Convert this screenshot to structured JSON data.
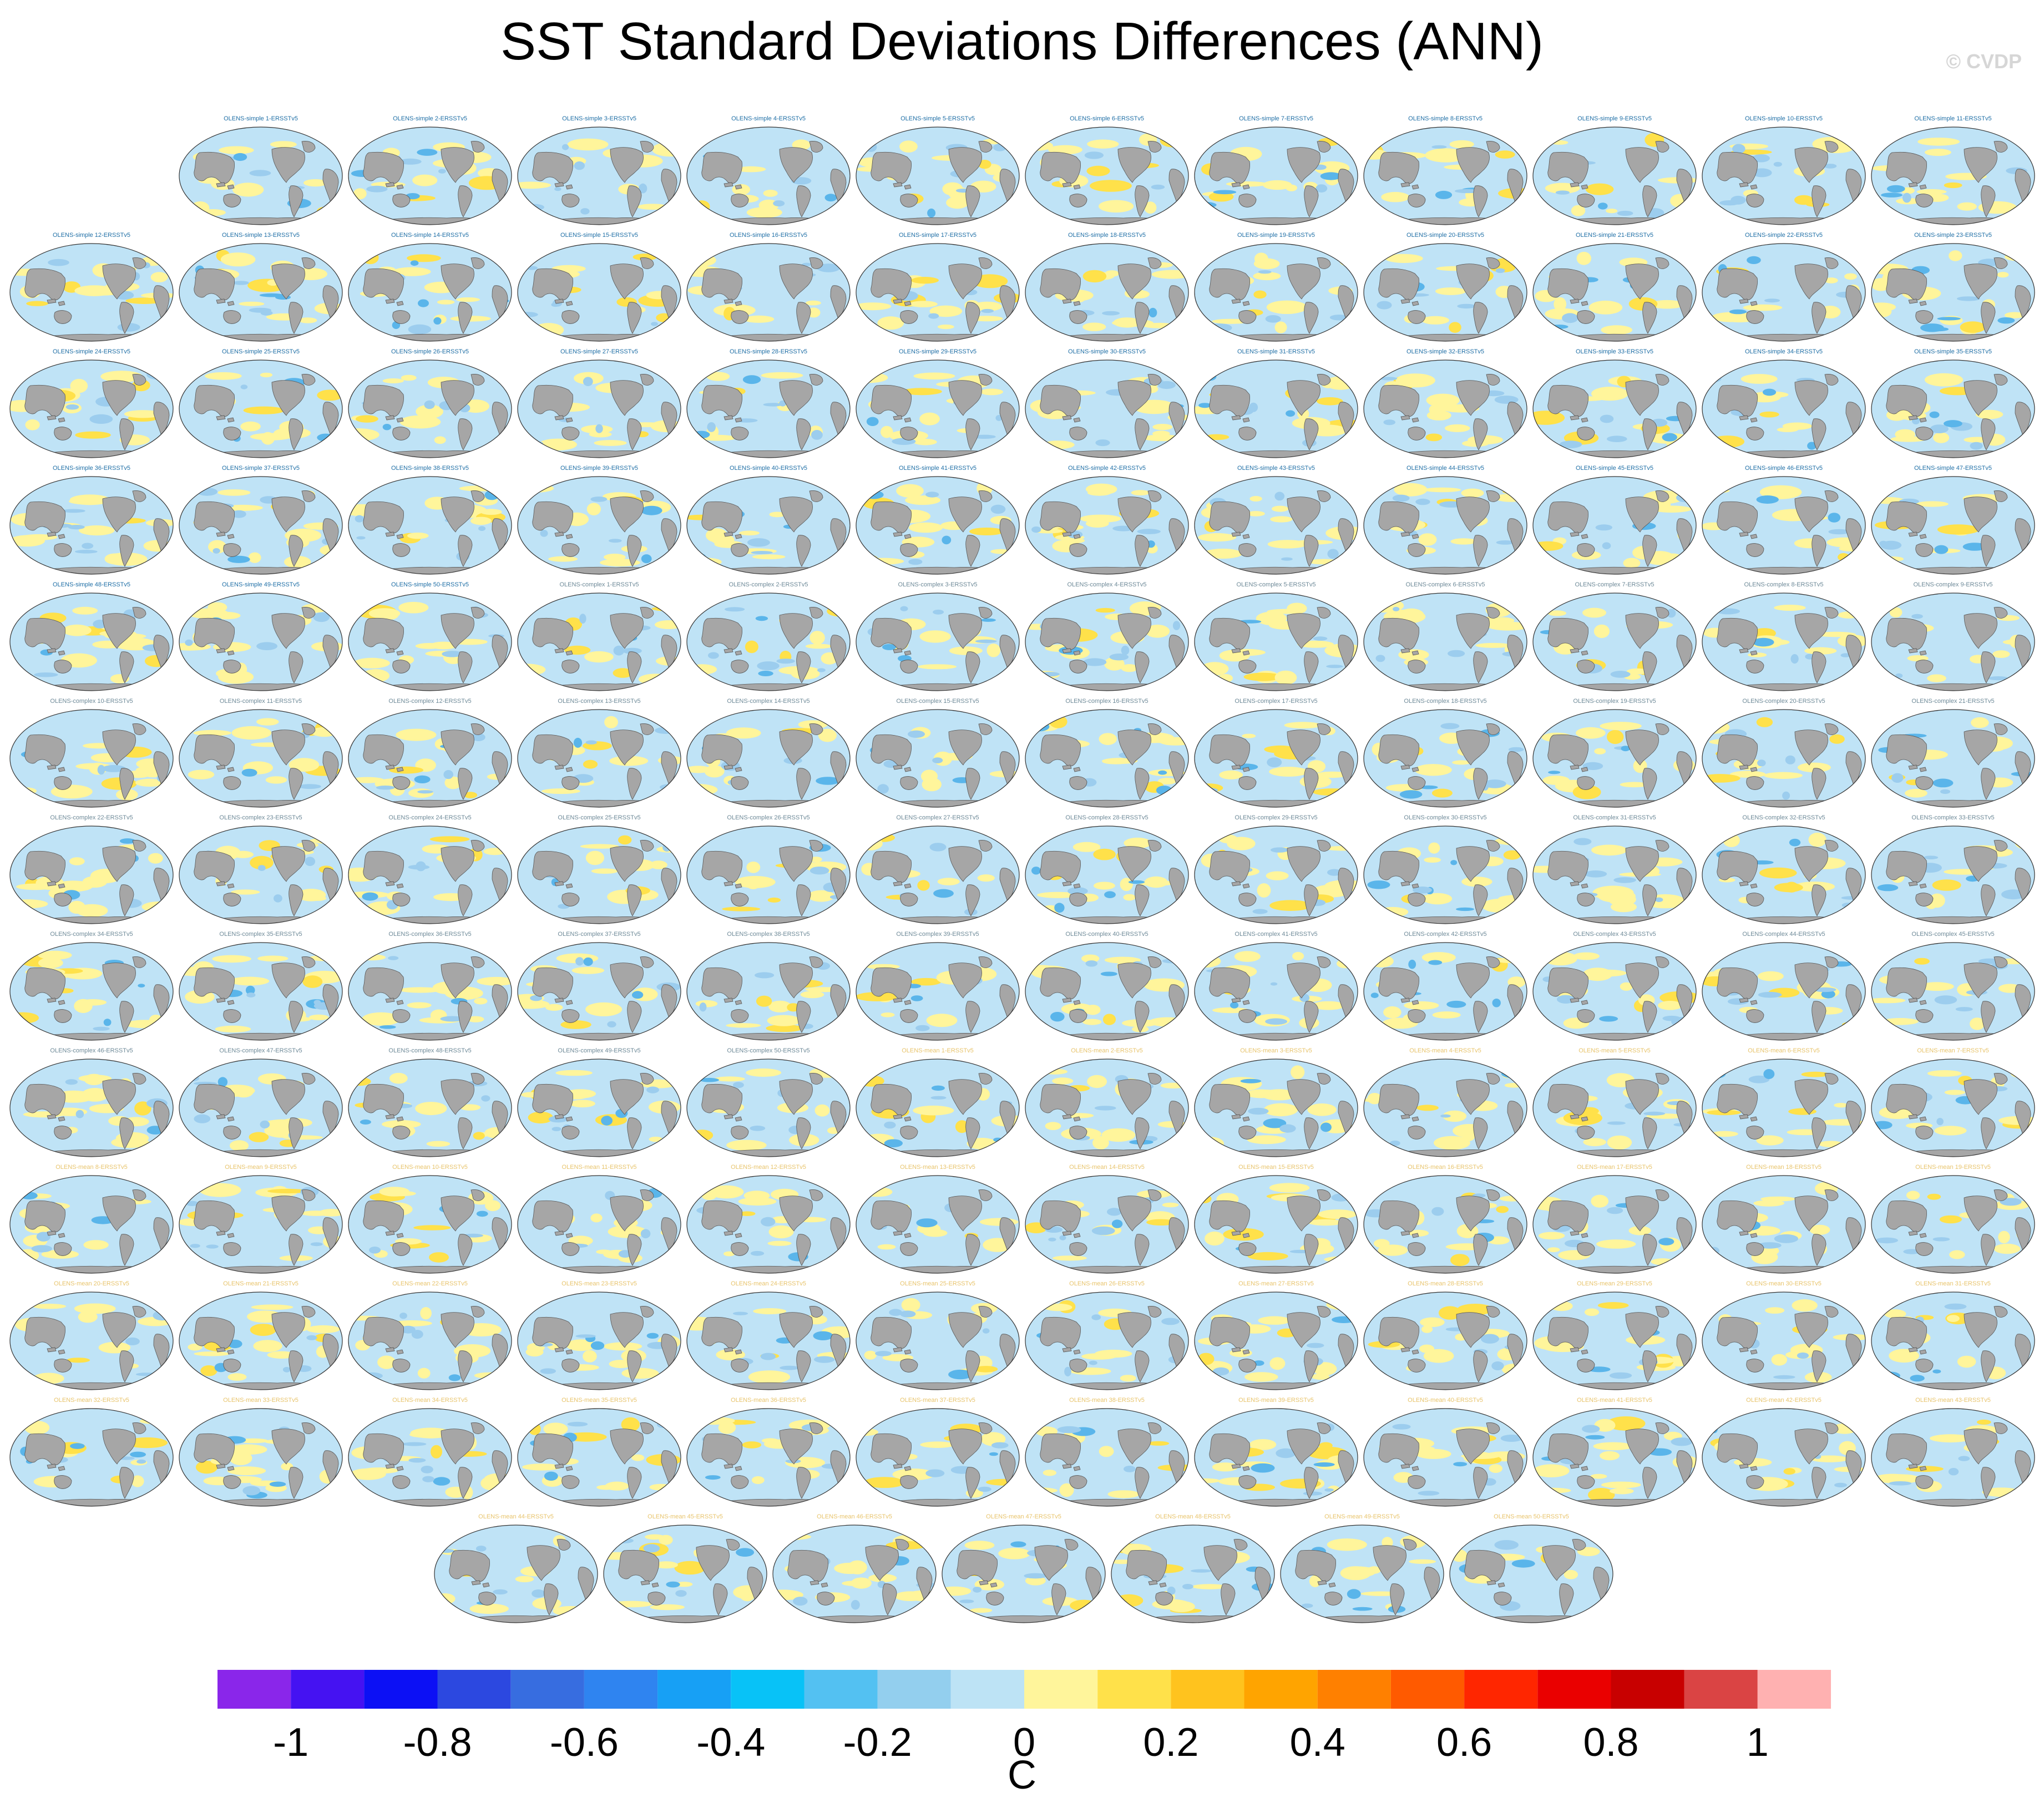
{
  "page": {
    "title": "SST Standard Deviations Differences (ANN)",
    "watermark": "© CVDP"
  },
  "colors": {
    "map_background": "#bfe3f6",
    "land": "#a6a6a6",
    "coast": "#555555",
    "positive_light": "#fff59b",
    "positive_mid": "#ffe14a",
    "negative_light": "#9ccdee",
    "negative_mid": "#5ab5ea",
    "title_simple": "#1f6fa6",
    "title_complex": "#6e8a98",
    "title_mean": "#e8c46c"
  },
  "chart_data": {
    "type": "heatmap",
    "title": "SST Standard Deviations Differences (ANN)",
    "variable": "SST standard deviation difference",
    "season": "ANN",
    "panels": {
      "simple": [
        "OLENS-simple 1-ERSSTv5",
        "OLENS-simple 2-ERSSTv5",
        "OLENS-simple 3-ERSSTv5",
        "OLENS-simple 4-ERSSTv5",
        "OLENS-simple 5-ERSSTv5",
        "OLENS-simple 6-ERSSTv5",
        "OLENS-simple 7-ERSSTv5",
        "OLENS-simple 8-ERSSTv5",
        "OLENS-simple 9-ERSSTv5",
        "OLENS-simple 10-ERSSTv5",
        "OLENS-simple 11-ERSSTv5",
        "OLENS-simple 12-ERSSTv5",
        "OLENS-simple 13-ERSSTv5",
        "OLENS-simple 14-ERSSTv5",
        "OLENS-simple 15-ERSSTv5",
        "OLENS-simple 16-ERSSTv5",
        "OLENS-simple 17-ERSSTv5",
        "OLENS-simple 18-ERSSTv5",
        "OLENS-simple 19-ERSSTv5",
        "OLENS-simple 20-ERSSTv5",
        "OLENS-simple 21-ERSSTv5",
        "OLENS-simple 22-ERSSTv5",
        "OLENS-simple 23-ERSSTv5",
        "OLENS-simple 24-ERSSTv5",
        "OLENS-simple 25-ERSSTv5",
        "OLENS-simple 26-ERSSTv5",
        "OLENS-simple 27-ERSSTv5",
        "OLENS-simple 28-ERSSTv5",
        "OLENS-simple 29-ERSSTv5",
        "OLENS-simple 30-ERSSTv5",
        "OLENS-simple 31-ERSSTv5",
        "OLENS-simple 32-ERSSTv5",
        "OLENS-simple 33-ERSSTv5",
        "OLENS-simple 34-ERSSTv5",
        "OLENS-simple 35-ERSSTv5",
        "OLENS-simple 36-ERSSTv5",
        "OLENS-simple 37-ERSSTv5",
        "OLENS-simple 38-ERSSTv5",
        "OLENS-simple 39-ERSSTv5",
        "OLENS-simple 40-ERSSTv5",
        "OLENS-simple 41-ERSSTv5",
        "OLENS-simple 42-ERSSTv5",
        "OLENS-simple 43-ERSSTv5",
        "OLENS-simple 44-ERSSTv5",
        "OLENS-simple 45-ERSSTv5",
        "OLENS-simple 46-ERSSTv5",
        "OLENS-simple 47-ERSSTv5",
        "OLENS-simple 48-ERSSTv5",
        "OLENS-simple 49-ERSSTv5",
        "OLENS-simple 50-ERSSTv5"
      ],
      "complex": [
        "OLENS-complex 1-ERSSTv5",
        "OLENS-complex 2-ERSSTv5",
        "OLENS-complex 3-ERSSTv5",
        "OLENS-complex 4-ERSSTv5",
        "OLENS-complex 5-ERSSTv5",
        "OLENS-complex 6-ERSSTv5",
        "OLENS-complex 7-ERSSTv5",
        "OLENS-complex 8-ERSSTv5",
        "OLENS-complex 9-ERSSTv5",
        "OLENS-complex 10-ERSSTv5",
        "OLENS-complex 11-ERSSTv5",
        "OLENS-complex 12-ERSSTv5",
        "OLENS-complex 13-ERSSTv5",
        "OLENS-complex 14-ERSSTv5",
        "OLENS-complex 15-ERSSTv5",
        "OLENS-complex 16-ERSSTv5",
        "OLENS-complex 17-ERSSTv5",
        "OLENS-complex 18-ERSSTv5",
        "OLENS-complex 19-ERSSTv5",
        "OLENS-complex 20-ERSSTv5",
        "OLENS-complex 21-ERSSTv5",
        "OLENS-complex 22-ERSSTv5",
        "OLENS-complex 23-ERSSTv5",
        "OLENS-complex 24-ERSSTv5",
        "OLENS-complex 25-ERSSTv5",
        "OLENS-complex 26-ERSSTv5",
        "OLENS-complex 27-ERSSTv5",
        "OLENS-complex 28-ERSSTv5",
        "OLENS-complex 29-ERSSTv5",
        "OLENS-complex 30-ERSSTv5",
        "OLENS-complex 31-ERSSTv5",
        "OLENS-complex 32-ERSSTv5",
        "OLENS-complex 33-ERSSTv5",
        "OLENS-complex 34-ERSSTv5",
        "OLENS-complex 35-ERSSTv5",
        "OLENS-complex 36-ERSSTv5",
        "OLENS-complex 37-ERSSTv5",
        "OLENS-complex 38-ERSSTv5",
        "OLENS-complex 39-ERSSTv5",
        "OLENS-complex 40-ERSSTv5",
        "OLENS-complex 41-ERSSTv5",
        "OLENS-complex 42-ERSSTv5",
        "OLENS-complex 43-ERSSTv5",
        "OLENS-complex 44-ERSSTv5",
        "OLENS-complex 45-ERSSTv5",
        "OLENS-complex 46-ERSSTv5",
        "OLENS-complex 47-ERSSTv5",
        "OLENS-complex 48-ERSSTv5",
        "OLENS-complex 49-ERSSTv5",
        "OLENS-complex 50-ERSSTv5"
      ],
      "mean": [
        "OLENS-mean 1-ERSSTv5",
        "OLENS-mean 2-ERSSTv5",
        "OLENS-mean 3-ERSSTv5",
        "OLENS-mean 4-ERSSTv5",
        "OLENS-mean 5-ERSSTv5",
        "OLENS-mean 6-ERSSTv5",
        "OLENS-mean 7-ERSSTv5",
        "OLENS-mean 8-ERSSTv5",
        "OLENS-mean 9-ERSSTv5",
        "OLENS-mean 10-ERSSTv5",
        "OLENS-mean 11-ERSSTv5",
        "OLENS-mean 12-ERSSTv5",
        "OLENS-mean 13-ERSSTv5",
        "OLENS-mean 14-ERSSTv5",
        "OLENS-mean 15-ERSSTv5",
        "OLENS-mean 16-ERSSTv5",
        "OLENS-mean 17-ERSSTv5",
        "OLENS-mean 18-ERSSTv5",
        "OLENS-mean 19-ERSSTv5",
        "OLENS-mean 20-ERSSTv5",
        "OLENS-mean 21-ERSSTv5",
        "OLENS-mean 22-ERSSTv5",
        "OLENS-mean 23-ERSSTv5",
        "OLENS-mean 24-ERSSTv5",
        "OLENS-mean 25-ERSSTv5",
        "OLENS-mean 26-ERSSTv5",
        "OLENS-mean 27-ERSSTv5",
        "OLENS-mean 28-ERSSTv5",
        "OLENS-mean 29-ERSSTv5",
        "OLENS-mean 30-ERSSTv5",
        "OLENS-mean 31-ERSSTv5",
        "OLENS-mean 32-ERSSTv5",
        "OLENS-mean 33-ERSSTv5",
        "OLENS-mean 34-ERSSTv5",
        "OLENS-mean 35-ERSSTv5",
        "OLENS-mean 36-ERSSTv5",
        "OLENS-mean 37-ERSSTv5",
        "OLENS-mean 38-ERSSTv5",
        "OLENS-mean 39-ERSSTv5",
        "OLENS-mean 40-ERSSTv5",
        "OLENS-mean 41-ERSSTv5",
        "OLENS-mean 42-ERSSTv5",
        "OLENS-mean 43-ERSSTv5",
        "OLENS-mean 44-ERSSTv5",
        "OLENS-mean 45-ERSSTv5",
        "OLENS-mean 46-ERSSTv5",
        "OLENS-mean 47-ERSSTv5",
        "OLENS-mean 48-ERSSTv5",
        "OLENS-mean 49-ERSSTv5",
        "OLENS-mean 50-ERSSTv5"
      ]
    },
    "colorbar": {
      "unit": "C",
      "range": [
        -1.1,
        1.1
      ],
      "boundaries": [
        -1.0,
        -0.9,
        -0.8,
        -0.7,
        -0.6,
        -0.5,
        -0.4,
        -0.3,
        -0.2,
        -0.1,
        0.0,
        0.1,
        0.2,
        0.3,
        0.4,
        0.5,
        0.6,
        0.7,
        0.8,
        0.9,
        1.0
      ],
      "tick_labels": [
        "-1",
        "-0.8",
        "-0.6",
        "-0.4",
        "-0.2",
        "0",
        "0.2",
        "0.4",
        "0.6",
        "0.8",
        "1"
      ],
      "tick_values": [
        -1.0,
        -0.8,
        -0.6,
        -0.4,
        -0.2,
        0.0,
        0.2,
        0.4,
        0.6,
        0.8,
        1.0
      ],
      "colors": [
        "#8a26ea",
        "#4512f2",
        "#0c10f5",
        "#2c48e0",
        "#376de0",
        "#2f84f0",
        "#17a0f5",
        "#08c2f7",
        "#53c1f2",
        "#93cfee",
        "#bde3f5",
        "#fff59b",
        "#ffe14a",
        "#ffc31e",
        "#ffa400",
        "#ff8000",
        "#ff5a00",
        "#ff2600",
        "#ea0000",
        "#c80000",
        "#da4444",
        "#ffb1b1"
      ]
    }
  }
}
